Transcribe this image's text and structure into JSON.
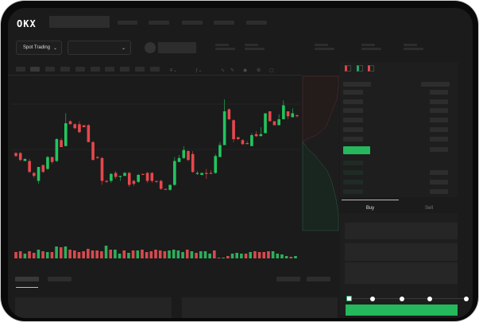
{
  "header": {
    "logo": "OKX",
    "market_selector": "Spot Trading",
    "market_chevron": "chevron-down-icon",
    "pair_chevron": "chevron-down-icon"
  },
  "orderbook": {
    "view_icons": [
      "orderbook-both-icon",
      "orderbook-bids-icon",
      "orderbook-asks-icon"
    ]
  },
  "trade_panel": {
    "tabs": [
      {
        "label": "Buy",
        "active": true
      },
      {
        "label": "Sell",
        "active": false
      }
    ],
    "slider_level": 0,
    "submit_color": "#25b85c"
  },
  "colors": {
    "up": "#22c55e",
    "down": "#e5484d",
    "background": "#1b1b1b"
  },
  "candles": [
    [
      46,
      43,
      47,
      42
    ],
    [
      46,
      39,
      47,
      38
    ],
    [
      38,
      40,
      41,
      38
    ],
    [
      38,
      27,
      40,
      26
    ],
    [
      26,
      23,
      27,
      21
    ],
    [
      18,
      32,
      32,
      15
    ],
    [
      34,
      27,
      34,
      26
    ],
    [
      30,
      42,
      43,
      29
    ],
    [
      42,
      37,
      42,
      35
    ],
    [
      38,
      60,
      61,
      37
    ],
    [
      59,
      52,
      61,
      52
    ],
    [
      53,
      76,
      86,
      53
    ],
    [
      78,
      75,
      79,
      75
    ],
    [
      75,
      71,
      76,
      70
    ],
    [
      75,
      67,
      78,
      66
    ],
    [
      74,
      72,
      74,
      72
    ],
    [
      74,
      57,
      75,
      57
    ],
    [
      57,
      39,
      58,
      39
    ],
    [
      42,
      41,
      43,
      40
    ],
    [
      41,
      18,
      42,
      14
    ],
    [
      18,
      17,
      19,
      16
    ],
    [
      18,
      25,
      26,
      16
    ],
    [
      26,
      22,
      28,
      20
    ],
    [
      22,
      23,
      23,
      18
    ],
    [
      23,
      26,
      27,
      23
    ],
    [
      26,
      14,
      27,
      12
    ],
    [
      18,
      15,
      19,
      13
    ],
    [
      17,
      24,
      25,
      16
    ],
    [
      25,
      24,
      25,
      24
    ],
    [
      26,
      18,
      27,
      16
    ],
    [
      26,
      18,
      27,
      16
    ],
    [
      18,
      17,
      18,
      16
    ],
    [
      18,
      10,
      19,
      9
    ],
    [
      10,
      9,
      10,
      9
    ],
    [
      9,
      14,
      14,
      8
    ],
    [
      14,
      38,
      42,
      13
    ],
    [
      37,
      41,
      44,
      37
    ],
    [
      41,
      49,
      53,
      40
    ],
    [
      48,
      39,
      49,
      38
    ],
    [
      45,
      27,
      48,
      26
    ],
    [
      25,
      26,
      28,
      24
    ],
    [
      24,
      26,
      26,
      24
    ],
    [
      26,
      25,
      30,
      20
    ],
    [
      26,
      25,
      29,
      25
    ],
    [
      26,
      43,
      45,
      25
    ],
    [
      42,
      54,
      57,
      42
    ],
    [
      54,
      88,
      100,
      54
    ],
    [
      90,
      80,
      91,
      79
    ],
    [
      79,
      60,
      80,
      57
    ],
    [
      62,
      60,
      62,
      59
    ],
    [
      59,
      55,
      60,
      54
    ],
    [
      56,
      55,
      58,
      55
    ],
    [
      53,
      64,
      66,
      53
    ],
    [
      65,
      63,
      68,
      62
    ],
    [
      63,
      65,
      72,
      63
    ],
    [
      66,
      86,
      86,
      66
    ],
    [
      88,
      78,
      88,
      78
    ],
    [
      78,
      74,
      78,
      74
    ],
    [
      74,
      80,
      85,
      74
    ],
    [
      80,
      94,
      99,
      80
    ],
    [
      88,
      83,
      88,
      80
    ],
    [
      82,
      86,
      91,
      82
    ],
    [
      84,
      83,
      85,
      82
    ]
  ],
  "volume": [
    [
      "d",
      8
    ],
    [
      "d",
      9
    ],
    [
      "u",
      6
    ],
    [
      "d",
      9
    ],
    [
      "d",
      7
    ],
    [
      "u",
      11
    ],
    [
      "d",
      9
    ],
    [
      "u",
      8
    ],
    [
      "d",
      8
    ],
    [
      "u",
      15
    ],
    [
      "d",
      14
    ],
    [
      "u",
      15
    ],
    [
      "d",
      11
    ],
    [
      "d",
      10
    ],
    [
      "d",
      8
    ],
    [
      "d",
      9
    ],
    [
      "d",
      12
    ],
    [
      "d",
      10
    ],
    [
      "d",
      10
    ],
    [
      "d",
      9
    ],
    [
      "u",
      16
    ],
    [
      "d",
      11
    ],
    [
      "u",
      11
    ],
    [
      "u",
      6
    ],
    [
      "d",
      10
    ],
    [
      "u",
      7
    ],
    [
      "d",
      10
    ],
    [
      "u",
      10
    ],
    [
      "d",
      11
    ],
    [
      "d",
      8
    ],
    [
      "d",
      9
    ],
    [
      "d",
      11
    ],
    [
      "d",
      10
    ],
    [
      "d",
      9
    ],
    [
      "u",
      10
    ],
    [
      "u",
      11
    ],
    [
      "u",
      10
    ],
    [
      "u",
      8
    ],
    [
      "d",
      11
    ],
    [
      "u",
      9
    ],
    [
      "d",
      7
    ],
    [
      "u",
      9
    ],
    [
      "u",
      9
    ],
    [
      "u",
      6
    ],
    [
      "d",
      10
    ],
    [
      "d",
      1
    ],
    [
      "u",
      1
    ],
    [
      "d",
      3
    ],
    [
      "u",
      6
    ],
    [
      "u",
      7
    ],
    [
      "u",
      6
    ],
    [
      "d",
      6
    ],
    [
      "u",
      8
    ],
    [
      "d",
      9
    ],
    [
      "d",
      8
    ],
    [
      "d",
      8
    ],
    [
      "d",
      9
    ],
    [
      "u",
      9
    ],
    [
      "u",
      6
    ],
    [
      "u",
      5
    ],
    [
      "u",
      3
    ],
    [
      "d",
      2
    ],
    [
      "u",
      3
    ]
  ]
}
